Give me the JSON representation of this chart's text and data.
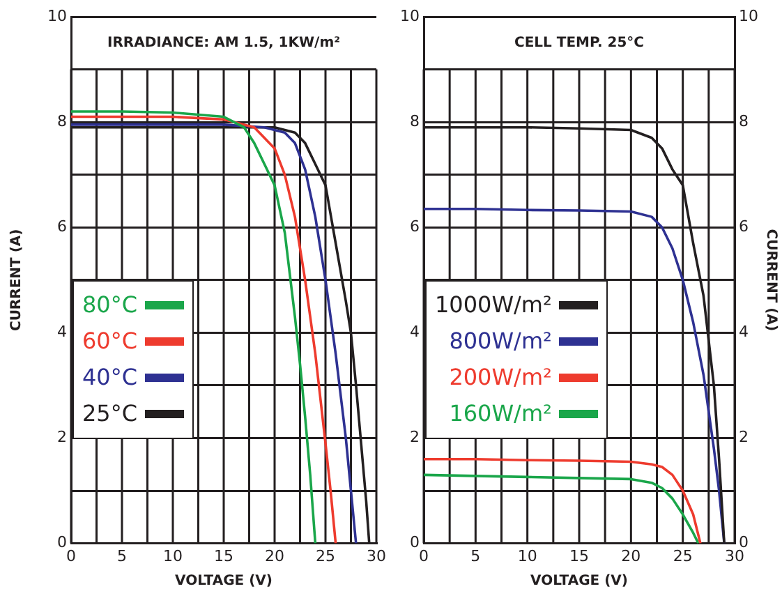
{
  "chart_data": [
    {
      "type": "line",
      "title": "IRRADIANCE: AM 1.5, 1KW/m²",
      "xlabel": "VOLTAGE (V)",
      "ylabel": "CURRENT (A)",
      "xlim": [
        0,
        30
      ],
      "xticks": [
        0,
        {
          "value": 2.5,
          "label": null
        },
        5,
        {
          "value": 7.5,
          "label": null
        },
        10,
        {
          "value": 12.5,
          "label": null
        },
        15,
        {
          "value": 17.5,
          "label": null
        },
        20,
        {
          "value": 22.5,
          "label": null
        },
        25,
        {
          "value": 27.5,
          "label": null
        },
        30
      ],
      "ylim": [
        0,
        10
      ],
      "yticks": [
        0,
        {
          "value": 1,
          "label": null
        },
        2,
        {
          "value": 3,
          "label": null
        },
        4,
        {
          "value": 5,
          "label": null
        },
        6,
        {
          "value": 7,
          "label": null
        },
        8,
        {
          "value": 9,
          "label": null
        },
        10
      ],
      "grid": true,
      "legend": "left",
      "marker": "none",
      "line_style": "solid",
      "series": [
        {
          "name": "80°C",
          "color": "#1aa64a",
          "x": [
            0,
            5,
            10,
            15,
            17,
            18,
            19,
            20,
            21,
            22,
            22.5,
            23,
            23.5,
            24
          ],
          "values": [
            8.2,
            8.2,
            8.18,
            8.1,
            7.9,
            7.6,
            7.2,
            6.8,
            5.9,
            4.3,
            3.4,
            2.4,
            1.3,
            0
          ]
        },
        {
          "name": "60°C",
          "color": "#ee3b2e",
          "x": [
            0,
            5,
            10,
            15,
            18,
            20,
            21,
            22,
            23,
            24,
            25,
            25.5,
            26
          ],
          "values": [
            8.1,
            8.1,
            8.1,
            8.05,
            7.9,
            7.5,
            7.0,
            6.2,
            5.0,
            3.6,
            1.9,
            1.0,
            0
          ]
        },
        {
          "name": "40°C",
          "color": "#2e3192",
          "x": [
            0,
            5,
            10,
            15,
            19,
            21,
            22,
            23,
            24,
            25,
            26,
            27,
            27.5,
            28
          ],
          "values": [
            7.95,
            7.95,
            7.95,
            7.95,
            7.9,
            7.8,
            7.6,
            7.1,
            6.2,
            5.0,
            3.6,
            2.0,
            1.0,
            0
          ]
        },
        {
          "name": "25°C",
          "color": "#231f20",
          "x": [
            0,
            5,
            10,
            15,
            20,
            22,
            23,
            24,
            25,
            26,
            27,
            27.5,
            28,
            28.5,
            29,
            29.3
          ],
          "values": [
            7.9,
            7.9,
            7.9,
            7.9,
            7.9,
            7.8,
            7.6,
            7.2,
            6.8,
            5.7,
            4.6,
            4.0,
            3.0,
            1.9,
            0.8,
            0
          ]
        }
      ]
    },
    {
      "type": "line",
      "title": "CELL TEMP. 25°C",
      "xlabel": "VOLTAGE (V)",
      "y2label": "CURRENT (A)",
      "xlim": [
        0,
        30
      ],
      "xticks": [
        0,
        {
          "value": 2.5,
          "label": null
        },
        5,
        {
          "value": 7.5,
          "label": null
        },
        10,
        {
          "value": 12.5,
          "label": null
        },
        15,
        {
          "value": 17.5,
          "label": null
        },
        20,
        {
          "value": 22.5,
          "label": null
        },
        25,
        {
          "value": 27.5,
          "label": null
        },
        30
      ],
      "ylim": [
        0,
        10
      ],
      "yticks": [
        0,
        {
          "value": 1,
          "label": null
        },
        2,
        {
          "value": 3,
          "label": null
        },
        4,
        {
          "value": 5,
          "label": null
        },
        6,
        {
          "value": 7,
          "label": null
        },
        8,
        {
          "value": 9,
          "label": null
        },
        10
      ],
      "y2lim": [
        0,
        10
      ],
      "y2ticks": [
        0,
        {
          "value": 1,
          "label": null
        },
        2,
        {
          "value": 3,
          "label": null
        },
        4,
        {
          "value": 5,
          "label": null
        },
        6,
        {
          "value": 7,
          "label": null
        },
        8,
        {
          "value": 9,
          "label": null
        },
        10
      ],
      "grid": true,
      "legend": "left",
      "marker": "none",
      "line_style": "solid",
      "series": [
        {
          "name": "1000W/m²",
          "color": "#231f20",
          "x": [
            0,
            5,
            10,
            15,
            20,
            22,
            23,
            24,
            25,
            26,
            27,
            28,
            28.5,
            29
          ],
          "values": [
            7.9,
            7.9,
            7.9,
            7.88,
            7.85,
            7.7,
            7.5,
            7.1,
            6.8,
            5.7,
            4.7,
            3.0,
            1.6,
            0
          ]
        },
        {
          "name": "800W/m²",
          "color": "#2e3192",
          "x": [
            0,
            5,
            10,
            15,
            20,
            22,
            23,
            24,
            25,
            26,
            27,
            28,
            28.5,
            29
          ],
          "values": [
            6.35,
            6.35,
            6.33,
            6.32,
            6.3,
            6.2,
            6.0,
            5.6,
            5.0,
            4.2,
            3.2,
            1.8,
            1.0,
            0
          ]
        },
        {
          "name": "200W/m²",
          "color": "#ee3b2e",
          "x": [
            0,
            5,
            10,
            15,
            20,
            22,
            23,
            24,
            25,
            26,
            26.7
          ],
          "values": [
            1.6,
            1.6,
            1.58,
            1.57,
            1.55,
            1.5,
            1.45,
            1.3,
            1.0,
            0.55,
            0
          ]
        },
        {
          "name": "160W/m²",
          "color": "#1aa64a",
          "x": [
            0,
            5,
            10,
            15,
            20,
            22,
            23,
            24,
            25,
            26,
            26.5
          ],
          "values": [
            1.3,
            1.28,
            1.26,
            1.24,
            1.22,
            1.15,
            1.05,
            0.85,
            0.55,
            0.2,
            0
          ]
        }
      ]
    }
  ]
}
